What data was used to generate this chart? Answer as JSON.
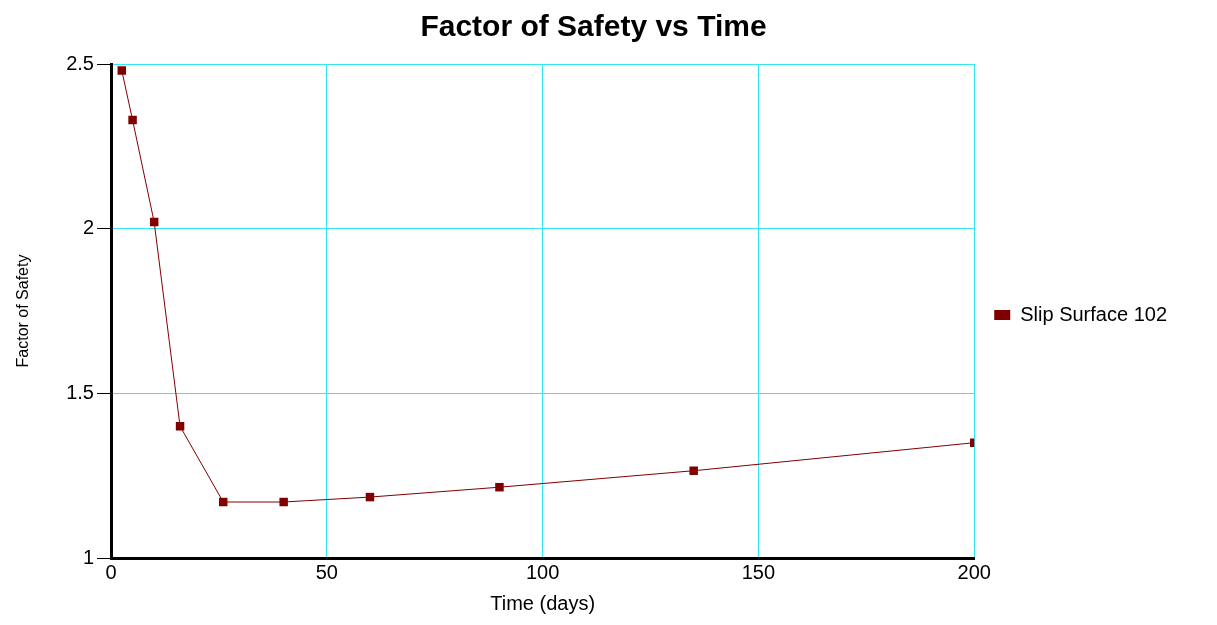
{
  "chart_data": {
    "type": "line",
    "title": "Factor of Safety vs Time",
    "xlabel": "Time (days)",
    "ylabel": "Factor of Safety",
    "x": [
      2.5,
      5,
      10,
      16,
      26,
      40,
      60,
      90,
      135,
      200
    ],
    "series": [
      {
        "name": "Slip Surface 102",
        "color": "#800000",
        "values": [
          2.48,
          2.33,
          2.02,
          1.4,
          1.17,
          1.17,
          1.185,
          1.215,
          1.265,
          1.35
        ]
      }
    ],
    "xlim": [
      0,
      200
    ],
    "xticks": [
      0,
      50,
      100,
      150,
      200
    ],
    "ylim": [
      1,
      2.5
    ],
    "yticks": [
      1,
      1.5,
      2,
      2.5
    ],
    "grid": true,
    "legend": "right",
    "marker": "square",
    "line_style": "solid"
  }
}
